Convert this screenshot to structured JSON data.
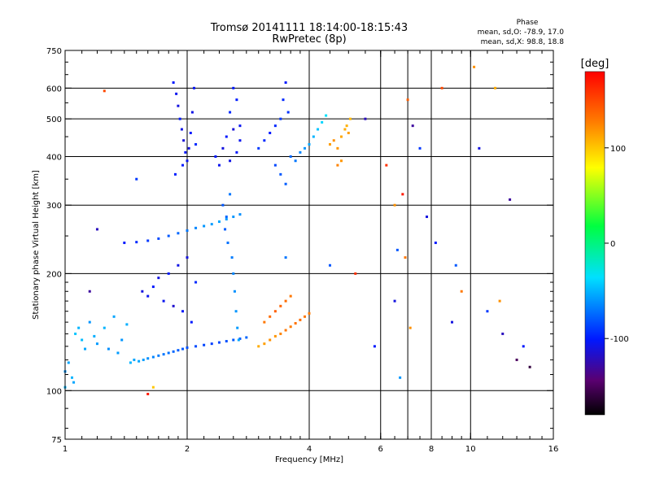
{
  "chart_data": {
    "type": "scatter",
    "title": "Tromsø 20141111 18:14:00-18:15:43",
    "subtitle": "RwPretec (8p)",
    "stats": {
      "heading": "Phase",
      "line_o": "mean, sd,O: -78.9, 17.0",
      "line_x": "mean, sd,X:  98.8, 18.8"
    },
    "xlabel": "Frequency [MHz]",
    "ylabel": "Stationary phase Virtual Height [km]",
    "x_scale": "log2",
    "y_scale": "log",
    "xlim": [
      1,
      16
    ],
    "ylim": [
      75,
      750
    ],
    "x_ticks": [
      1,
      2,
      4,
      6,
      8,
      10,
      16
    ],
    "x_tick_labels": [
      "1",
      "2",
      "4",
      "6",
      "8",
      "10",
      "16"
    ],
    "x_gridlines": [
      2,
      4,
      6,
      7,
      8,
      10
    ],
    "y_ticks": [
      75,
      100,
      200,
      300,
      400,
      500,
      600,
      750
    ],
    "y_tick_labels": [
      "75",
      "100",
      "200",
      "300",
      "400",
      "500",
      "600",
      "750"
    ],
    "y_gridlines": [
      100,
      200,
      300,
      400,
      500,
      600
    ],
    "grid": true,
    "colorbar": {
      "label": "[deg]",
      "range": [
        -180,
        180
      ],
      "ticks": [
        100,
        0,
        -100
      ],
      "tick_labels": [
        "100",
        "0",
        "-100"
      ],
      "colormap": "rainbow"
    },
    "series": [
      {
        "points": [
          [
            1.0,
            112,
            -60
          ],
          [
            1.02,
            118,
            -55
          ],
          [
            1.04,
            108,
            -50
          ],
          [
            1.06,
            140,
            -45
          ],
          [
            1.08,
            145,
            -50
          ],
          [
            1.1,
            135,
            -48
          ],
          [
            1.12,
            128,
            -55
          ],
          [
            1.15,
            150,
            -60
          ],
          [
            1.18,
            138,
            -52
          ],
          [
            1.2,
            132,
            -58
          ],
          [
            1.25,
            145,
            -50
          ],
          [
            1.28,
            128,
            -62
          ],
          [
            1.32,
            155,
            -55
          ],
          [
            1.35,
            125,
            -58
          ],
          [
            1.38,
            135,
            -60
          ],
          [
            1.42,
            148,
            -52
          ],
          [
            1.45,
            118,
            -50
          ],
          [
            1.48,
            120,
            -55
          ],
          [
            1.52,
            119,
            -55
          ],
          [
            1.56,
            120,
            -58
          ],
          [
            1.6,
            121,
            -62
          ],
          [
            1.65,
            122,
            -65
          ],
          [
            1.7,
            123,
            -68
          ],
          [
            1.75,
            124,
            -70
          ],
          [
            1.8,
            125,
            -72
          ],
          [
            1.85,
            126,
            -75
          ],
          [
            1.9,
            127,
            -78
          ],
          [
            1.95,
            128,
            -80
          ],
          [
            2.0,
            129,
            -82
          ],
          [
            2.1,
            130,
            -84
          ],
          [
            2.2,
            131,
            -86
          ],
          [
            2.3,
            132,
            -88
          ],
          [
            2.4,
            133,
            -85
          ],
          [
            2.5,
            134,
            -82
          ],
          [
            2.6,
            135,
            -80
          ],
          [
            2.7,
            136,
            -78
          ],
          [
            2.8,
            137,
            -75
          ],
          [
            1.4,
            240,
            -100
          ],
          [
            1.5,
            241,
            -95
          ],
          [
            1.6,
            243,
            -90
          ],
          [
            1.7,
            246,
            -85
          ],
          [
            1.8,
            250,
            -80
          ],
          [
            1.9,
            254,
            -75
          ],
          [
            2.0,
            258,
            -70
          ],
          [
            2.1,
            262,
            -65
          ],
          [
            2.2,
            265,
            -60
          ],
          [
            2.3,
            268,
            -58
          ],
          [
            2.4,
            272,
            -55
          ],
          [
            2.5,
            276,
            -58
          ],
          [
            2.6,
            280,
            -60
          ],
          [
            2.7,
            284,
            -62
          ],
          [
            1.55,
            180,
            -110
          ],
          [
            1.6,
            175,
            -105
          ],
          [
            1.65,
            185,
            -100
          ],
          [
            1.7,
            195,
            -110
          ],
          [
            1.75,
            170,
            -105
          ],
          [
            1.8,
            200,
            -100
          ],
          [
            1.85,
            165,
            -115
          ],
          [
            1.9,
            210,
            -108
          ],
          [
            1.95,
            160,
            -102
          ],
          [
            2.0,
            220,
            -110
          ],
          [
            2.05,
            150,
            -100
          ],
          [
            2.1,
            190,
            -95
          ],
          [
            1.85,
            620,
            -100
          ],
          [
            1.88,
            580,
            -105
          ],
          [
            1.9,
            540,
            -110
          ],
          [
            1.92,
            500,
            -100
          ],
          [
            1.94,
            470,
            -108
          ],
          [
            1.96,
            440,
            -112
          ],
          [
            1.98,
            410,
            -102
          ],
          [
            2.0,
            390,
            -105
          ],
          [
            2.02,
            420,
            -110
          ],
          [
            2.04,
            460,
            -100
          ],
          [
            2.06,
            520,
            -108
          ],
          [
            2.08,
            600,
            -104
          ],
          [
            1.87,
            360,
            -98
          ],
          [
            1.95,
            380,
            -100
          ],
          [
            2.1,
            430,
            -95
          ],
          [
            2.35,
            400,
            -100
          ],
          [
            2.4,
            380,
            -105
          ],
          [
            2.45,
            420,
            -110
          ],
          [
            2.5,
            450,
            -100
          ],
          [
            2.55,
            390,
            -108
          ],
          [
            2.6,
            470,
            -112
          ],
          [
            2.65,
            410,
            -102
          ],
          [
            2.7,
            440,
            -105
          ],
          [
            2.55,
            520,
            -95
          ],
          [
            2.6,
            600,
            -100
          ],
          [
            2.65,
            560,
            -98
          ],
          [
            2.7,
            480,
            -104
          ],
          [
            2.45,
            300,
            -80
          ],
          [
            2.5,
            280,
            -75
          ],
          [
            2.55,
            320,
            -70
          ],
          [
            2.48,
            260,
            -78
          ],
          [
            2.52,
            240,
            -72
          ],
          [
            2.58,
            220,
            -68
          ],
          [
            2.6,
            200,
            -65
          ],
          [
            2.62,
            180,
            -62
          ],
          [
            2.64,
            160,
            -60
          ],
          [
            2.66,
            145,
            -58
          ],
          [
            2.68,
            135,
            -55
          ],
          [
            3.0,
            420,
            -90
          ],
          [
            3.1,
            440,
            -95
          ],
          [
            3.2,
            460,
            -100
          ],
          [
            3.3,
            480,
            -95
          ],
          [
            3.4,
            500,
            -90
          ],
          [
            3.45,
            560,
            -95
          ],
          [
            3.5,
            620,
            -100
          ],
          [
            3.55,
            520,
            -92
          ],
          [
            3.3,
            380,
            -85
          ],
          [
            3.4,
            360,
            -80
          ],
          [
            3.5,
            340,
            -78
          ],
          [
            3.6,
            400,
            -75
          ],
          [
            3.7,
            390,
            -70
          ],
          [
            3.8,
            410,
            -65
          ],
          [
            3.9,
            420,
            -60
          ],
          [
            4.0,
            430,
            -55
          ],
          [
            4.1,
            450,
            -50
          ],
          [
            4.2,
            470,
            -45
          ],
          [
            4.3,
            490,
            -40
          ],
          [
            4.4,
            510,
            -35
          ],
          [
            4.5,
            430,
            115
          ],
          [
            4.6,
            440,
            120
          ],
          [
            4.7,
            420,
            118
          ],
          [
            4.8,
            450,
            112
          ],
          [
            4.9,
            470,
            110
          ],
          [
            5.0,
            460,
            115
          ],
          [
            4.7,
            380,
            125
          ],
          [
            4.8,
            390,
            118
          ],
          [
            4.95,
            480,
            108
          ],
          [
            5.05,
            500,
            105
          ],
          [
            3.0,
            130,
            110
          ],
          [
            3.1,
            132,
            115
          ],
          [
            3.2,
            135,
            120
          ],
          [
            3.3,
            138,
            118
          ],
          [
            3.4,
            140,
            125
          ],
          [
            3.5,
            143,
            130
          ],
          [
            3.6,
            146,
            128
          ],
          [
            3.7,
            149,
            132
          ],
          [
            3.8,
            152,
            135
          ],
          [
            3.9,
            155,
            130
          ],
          [
            4.0,
            158,
            128
          ],
          [
            3.1,
            150,
            130
          ],
          [
            3.2,
            155,
            135
          ],
          [
            3.3,
            160,
            140
          ],
          [
            3.4,
            165,
            138
          ],
          [
            3.5,
            170,
            135
          ],
          [
            3.6,
            175,
            130
          ],
          [
            1.0,
            102,
            -50
          ],
          [
            1.05,
            105,
            -55
          ],
          [
            1.15,
            180,
            -130
          ],
          [
            1.2,
            260,
            -120
          ],
          [
            1.25,
            590,
            150
          ],
          [
            1.5,
            350,
            -90
          ],
          [
            1.6,
            98,
            170
          ],
          [
            1.65,
            102,
            100
          ],
          [
            3.5,
            220,
            -70
          ],
          [
            4.5,
            210,
            -80
          ],
          [
            5.2,
            200,
            160
          ],
          [
            5.5,
            500,
            -120
          ],
          [
            6.2,
            380,
            160
          ],
          [
            6.5,
            300,
            120
          ],
          [
            6.6,
            230,
            -80
          ],
          [
            6.8,
            320,
            170
          ],
          [
            6.9,
            220,
            130
          ],
          [
            7.0,
            560,
            140
          ],
          [
            7.2,
            480,
            -130
          ],
          [
            7.5,
            420,
            -90
          ],
          [
            7.8,
            280,
            -110
          ],
          [
            8.2,
            240,
            -100
          ],
          [
            8.5,
            600,
            150
          ],
          [
            9.2,
            210,
            -80
          ],
          [
            9.5,
            180,
            130
          ],
          [
            10.2,
            680,
            120
          ],
          [
            10.5,
            420,
            -110
          ],
          [
            11.0,
            160,
            -90
          ],
          [
            11.5,
            600,
            110
          ],
          [
            12.0,
            140,
            -120
          ],
          [
            12.5,
            310,
            -130
          ],
          [
            13.0,
            120,
            -150
          ],
          [
            13.5,
            130,
            -100
          ],
          [
            14.0,
            115,
            -160
          ],
          [
            6.7,
            108,
            -60
          ],
          [
            6.5,
            170,
            -110
          ],
          [
            7.1,
            145,
            120
          ],
          [
            5.8,
            130,
            -100
          ],
          [
            9.0,
            150,
            -110
          ],
          [
            11.8,
            170,
            120
          ]
        ]
      }
    ]
  }
}
